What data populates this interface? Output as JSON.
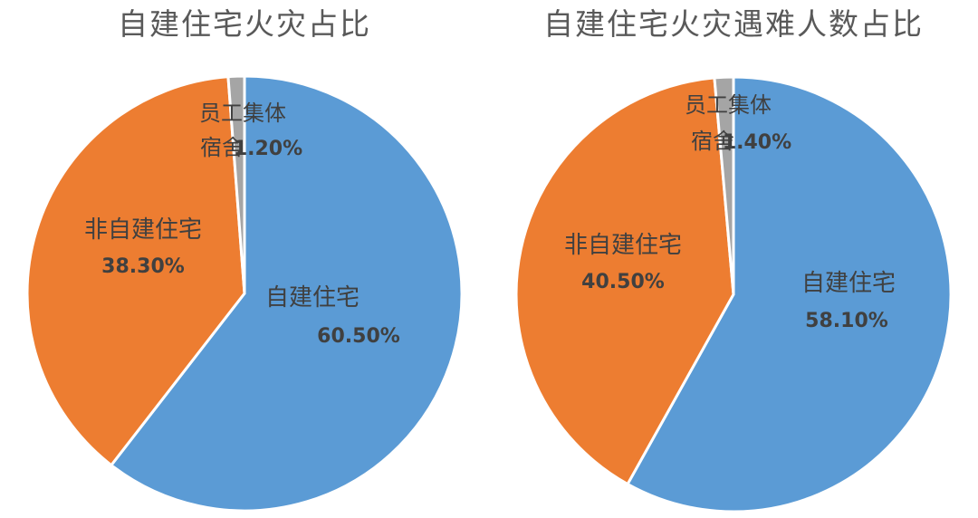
{
  "chart_data": [
    {
      "type": "pie",
      "title": "自建住宅火灾占比",
      "slices": [
        {
          "label": "自建住宅",
          "value": 60.5,
          "display": "60.50%",
          "color": "#5b9bd5"
        },
        {
          "label": "非自建住宅",
          "value": 38.3,
          "display": "38.30%",
          "color": "#ed7d31"
        },
        {
          "label": "员工集体宿舍",
          "label_lines": [
            "员工集体",
            "宿舍"
          ],
          "value": 1.2,
          "display": "1.20%",
          "color": "#a5a5a5"
        }
      ]
    },
    {
      "type": "pie",
      "title": "自建住宅火灾遇难人数占比",
      "slices": [
        {
          "label": "自建住宅",
          "value": 58.1,
          "display": "58.10%",
          "color": "#5b9bd5"
        },
        {
          "label": "非自建住宅",
          "value": 40.5,
          "display": "40.50%",
          "color": "#ed7d31"
        },
        {
          "label": "员工集体宿舍",
          "label_lines": [
            "员工集体",
            "宿舍"
          ],
          "value": 1.4,
          "display": "1.40%",
          "color": "#a5a5a5"
        }
      ]
    }
  ]
}
